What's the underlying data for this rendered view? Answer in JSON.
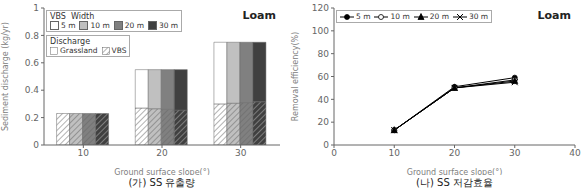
{
  "chart_data": [
    {
      "type": "bar",
      "stacked": true,
      "title": "Loam",
      "caption": "(가) SS 유출량",
      "xlabel": "Ground surface slope(°)",
      "ylabel": "Sediment discharge (kg/yr)",
      "categories": [
        "10",
        "20",
        "30"
      ],
      "ylim": [
        0,
        1
      ],
      "yticks": [
        0,
        0.2,
        0.4,
        0.6,
        0.8,
        1
      ],
      "grid": false,
      "legend": "upper left",
      "legend_title": "VBS  Width",
      "stack_legend_title": "Discharge",
      "stack_parts": [
        "VBS",
        "Grassland"
      ],
      "series": [
        {
          "name": "5 m",
          "color": "#ffffff",
          "segments": {
            "VBS": [
              0.23,
              0.27,
              0.3
            ],
            "Grassland": [
              0,
              0.28,
              0.45
            ]
          }
        },
        {
          "name": "10 m",
          "color": "#c0c0c0",
          "segments": {
            "VBS": [
              0.23,
              0.265,
              0.305
            ],
            "Grassland": [
              0,
              0.285,
              0.445
            ]
          }
        },
        {
          "name": "20 m",
          "color": "#808080",
          "segments": {
            "VBS": [
              0.23,
              0.26,
              0.31
            ],
            "Grassland": [
              0,
              0.29,
              0.44
            ]
          }
        },
        {
          "name": "30 m",
          "color": "#404040",
          "segments": {
            "VBS": [
              0.23,
              0.255,
              0.315
            ],
            "Grassland": [
              0,
              0.295,
              0.435
            ]
          }
        }
      ]
    },
    {
      "type": "line",
      "title": "Loam",
      "caption": "(나) SS 저감효율",
      "xlabel": "Ground surface slope(°)",
      "ylabel": "Removal efficiency(%)",
      "x": [
        10,
        20,
        30
      ],
      "xlim": [
        0,
        40
      ],
      "xticks": [
        0,
        10,
        20,
        30,
        40
      ],
      "ylim": [
        0,
        120
      ],
      "yticks": [
        0,
        20,
        40,
        60,
        80,
        100,
        120
      ],
      "grid": false,
      "legend": "upper left",
      "color": "#000000",
      "series": [
        {
          "name": "5 m",
          "marker": "circle",
          "values": [
            13,
            51,
            59
          ]
        },
        {
          "name": "10 m",
          "marker": "circle-open",
          "values": [
            13,
            50,
            57
          ]
        },
        {
          "name": "20 m",
          "marker": "triangle",
          "values": [
            13,
            50,
            56
          ]
        },
        {
          "name": "30 m",
          "marker": "x",
          "values": [
            13,
            50,
            55
          ]
        }
      ]
    }
  ]
}
